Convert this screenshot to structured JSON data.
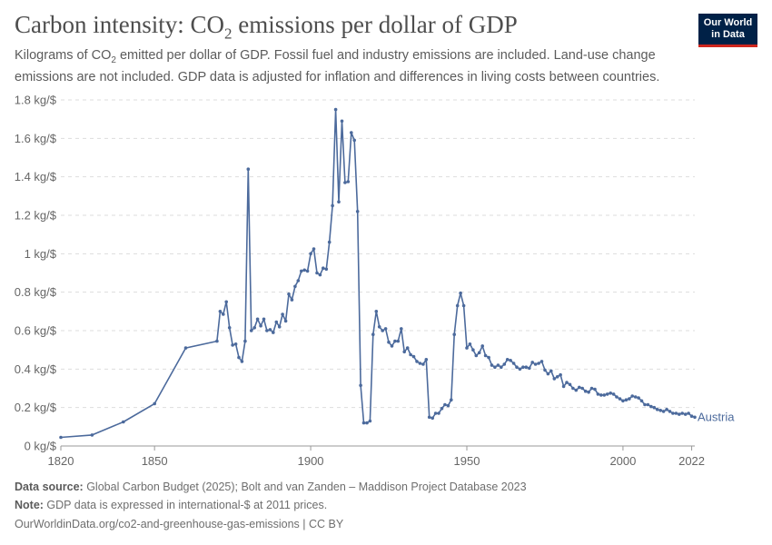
{
  "header": {
    "title_prefix": "Carbon intensity: CO",
    "title_sub": "2",
    "title_suffix": " emissions per dollar of GDP",
    "subtitle_prefix": "Kilograms of CO",
    "subtitle_sub": "2",
    "subtitle_suffix": " emitted per dollar of GDP. Fossil fuel and industry emissions are included. Land-use change emissions are not included. GDP data is adjusted for inflation and differences in living costs between countries."
  },
  "logo": {
    "line1": "Our World",
    "line2": "in Data"
  },
  "footer": {
    "source_label": "Data source:",
    "source_text": " Global Carbon Budget (2025); Bolt and van Zanden – Maddison Project Database 2023",
    "note_label": "Note:",
    "note_text": " GDP data is expressed in international-$ at 2011 prices.",
    "link": "OurWorldinData.org/co2-and-greenhouse-gas-emissions | CC BY"
  },
  "chart_data": {
    "type": "line",
    "title": "Carbon intensity: CO₂ emissions per dollar of GDP",
    "ylabel": "",
    "xlabel": "",
    "xlim": [
      1820,
      2023
    ],
    "ylim": [
      0,
      1.8
    ],
    "x_ticks": [
      1820,
      1850,
      1900,
      1950,
      2000,
      2022
    ],
    "y_ticks": [
      {
        "value": 0,
        "label": "0 kg/$"
      },
      {
        "value": 0.2,
        "label": "0.2 kg/$"
      },
      {
        "value": 0.4,
        "label": "0.4 kg/$"
      },
      {
        "value": 0.6,
        "label": "0.6 kg/$"
      },
      {
        "value": 0.8,
        "label": "0.8 kg/$"
      },
      {
        "value": 1.0,
        "label": "1 kg/$"
      },
      {
        "value": 1.2,
        "label": "1.2 kg/$"
      },
      {
        "value": 1.4,
        "label": "1.4 kg/$"
      },
      {
        "value": 1.6,
        "label": "1.6 kg/$"
      },
      {
        "value": 1.8,
        "label": "1.8 kg/$"
      }
    ],
    "grid": true,
    "color": "#4c6a9c",
    "series": [
      {
        "name": "Austria",
        "x": [
          1820,
          1830,
          1840,
          1850,
          1860,
          1870,
          1871,
          1872,
          1873,
          1874,
          1875,
          1876,
          1877,
          1878,
          1879,
          1880,
          1881,
          1882,
          1883,
          1884,
          1885,
          1886,
          1887,
          1888,
          1889,
          1890,
          1891,
          1892,
          1893,
          1894,
          1895,
          1896,
          1897,
          1898,
          1899,
          1900,
          1901,
          1902,
          1903,
          1904,
          1905,
          1906,
          1907,
          1908,
          1909,
          1910,
          1911,
          1912,
          1913,
          1914,
          1915,
          1916,
          1917,
          1918,
          1919,
          1920,
          1921,
          1922,
          1923,
          1924,
          1925,
          1926,
          1927,
          1928,
          1929,
          1930,
          1931,
          1932,
          1933,
          1934,
          1935,
          1936,
          1937,
          1938,
          1939,
          1940,
          1941,
          1942,
          1943,
          1944,
          1945,
          1946,
          1947,
          1948,
          1949,
          1950,
          1951,
          1952,
          1953,
          1954,
          1955,
          1956,
          1957,
          1958,
          1959,
          1960,
          1961,
          1962,
          1963,
          1964,
          1965,
          1966,
          1967,
          1968,
          1969,
          1970,
          1971,
          1972,
          1973,
          1974,
          1975,
          1976,
          1977,
          1978,
          1979,
          1980,
          1981,
          1982,
          1983,
          1984,
          1985,
          1986,
          1987,
          1988,
          1989,
          1990,
          1991,
          1992,
          1993,
          1994,
          1995,
          1996,
          1997,
          1998,
          1999,
          2000,
          2001,
          2002,
          2003,
          2004,
          2005,
          2006,
          2007,
          2008,
          2009,
          2010,
          2011,
          2012,
          2013,
          2014,
          2015,
          2016,
          2017,
          2018,
          2019,
          2020,
          2021,
          2022,
          2023
        ],
        "values": [
          0.045,
          0.057,
          0.125,
          0.22,
          0.51,
          0.545,
          0.7,
          0.685,
          0.75,
          0.615,
          0.525,
          0.53,
          0.46,
          0.44,
          0.545,
          1.44,
          0.6,
          0.615,
          0.66,
          0.625,
          0.66,
          0.6,
          0.605,
          0.59,
          0.645,
          0.62,
          0.685,
          0.65,
          0.79,
          0.76,
          0.83,
          0.86,
          0.91,
          0.915,
          0.91,
          1.0,
          1.025,
          0.9,
          0.89,
          0.925,
          0.92,
          1.06,
          1.25,
          1.75,
          1.27,
          1.69,
          1.37,
          1.375,
          1.63,
          1.59,
          1.22,
          0.315,
          0.12,
          0.12,
          0.13,
          0.58,
          0.7,
          0.62,
          0.6,
          0.61,
          0.54,
          0.52,
          0.545,
          0.545,
          0.61,
          0.49,
          0.51,
          0.475,
          0.465,
          0.44,
          0.43,
          0.425,
          0.45,
          0.15,
          0.145,
          0.17,
          0.17,
          0.195,
          0.215,
          0.21,
          0.24,
          0.58,
          0.73,
          0.795,
          0.73,
          0.51,
          0.53,
          0.5,
          0.47,
          0.485,
          0.52,
          0.47,
          0.46,
          0.42,
          0.41,
          0.42,
          0.41,
          0.425,
          0.45,
          0.445,
          0.43,
          0.41,
          0.4,
          0.41,
          0.41,
          0.405,
          0.435,
          0.425,
          0.43,
          0.44,
          0.395,
          0.375,
          0.39,
          0.35,
          0.36,
          0.37,
          0.31,
          0.33,
          0.32,
          0.3,
          0.29,
          0.305,
          0.3,
          0.285,
          0.28,
          0.3,
          0.295,
          0.27,
          0.265,
          0.265,
          0.27,
          0.275,
          0.27,
          0.255,
          0.245,
          0.235,
          0.24,
          0.245,
          0.26,
          0.255,
          0.25,
          0.235,
          0.215,
          0.215,
          0.205,
          0.2,
          0.19,
          0.185,
          0.18,
          0.19,
          0.18,
          0.17,
          0.17,
          0.165,
          0.17,
          0.165,
          0.17,
          0.155,
          0.15
        ]
      }
    ]
  }
}
